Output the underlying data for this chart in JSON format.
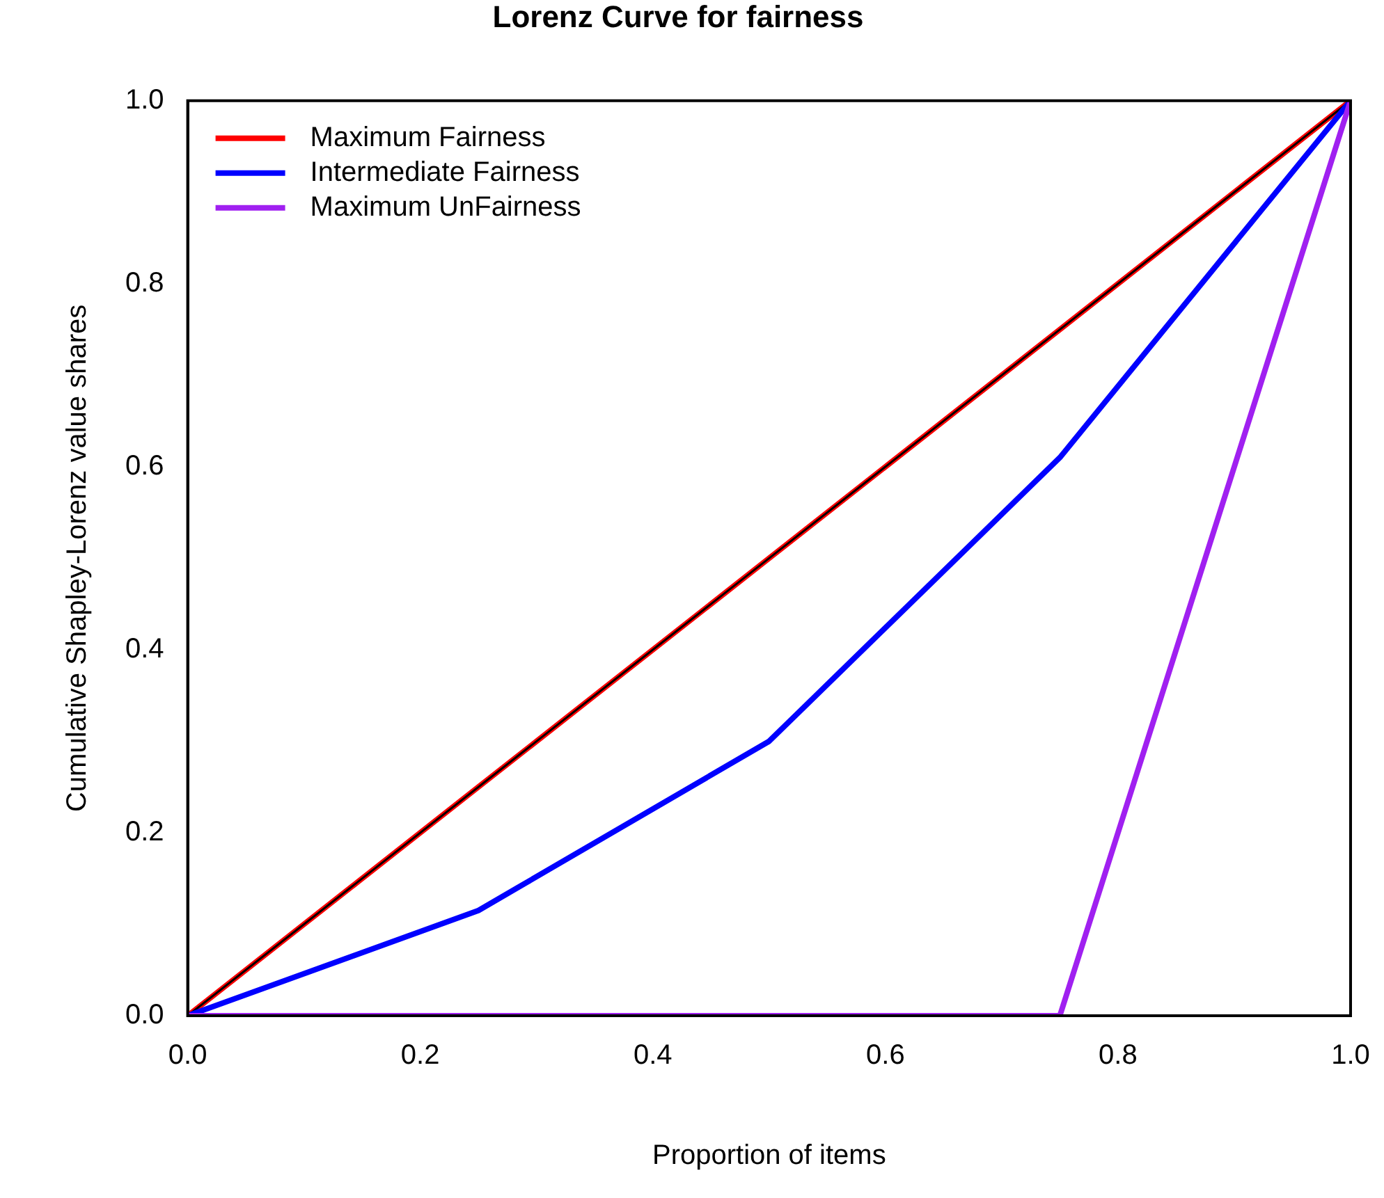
{
  "chart_data": {
    "type": "line",
    "title": "Lorenz Curve for fairness",
    "xlabel": "Proportion of items",
    "ylabel": "Cumulative Shapley-Lorenz value shares",
    "x": [
      0,
      0.25,
      0.5,
      0.75,
      1
    ],
    "series": [
      {
        "name": "Maximum Fairness",
        "color": "#ff0000",
        "values": [
          0,
          0.25,
          0.5,
          0.75,
          1
        ]
      },
      {
        "color": "#000000",
        "values": [
          0,
          0.25,
          0.5,
          0.75,
          1
        ]
      },
      {
        "name": "Intermediate Fairness",
        "color": "#0000ff",
        "values": [
          0,
          0.115,
          0.3,
          0.61,
          1
        ]
      },
      {
        "name": "Maximum UnFairness",
        "color": "#a020f0",
        "values": [
          0,
          0,
          0,
          0,
          1
        ]
      }
    ],
    "xlim": [
      0,
      1
    ],
    "ylim": [
      0,
      1
    ],
    "xticks": [
      {
        "value": 0,
        "label": "0.0"
      },
      {
        "value": 0.2,
        "label": "0.2"
      },
      {
        "value": 0.4,
        "label": "0.4"
      },
      {
        "value": 0.6,
        "label": "0.6"
      },
      {
        "value": 0.8,
        "label": "0.8"
      },
      {
        "value": 1,
        "label": "1.0"
      }
    ],
    "yticks": [
      {
        "value": 0,
        "label": "0.0"
      },
      {
        "value": 0.2,
        "label": "0.2"
      },
      {
        "value": 0.4,
        "label": "0.4"
      },
      {
        "value": 0.6,
        "label": "0.6"
      },
      {
        "value": 0.8,
        "label": "0.8"
      },
      {
        "value": 1,
        "label": "1.0"
      }
    ],
    "grid": false,
    "legend": "top left",
    "marker": "none",
    "line_style": "solid"
  }
}
